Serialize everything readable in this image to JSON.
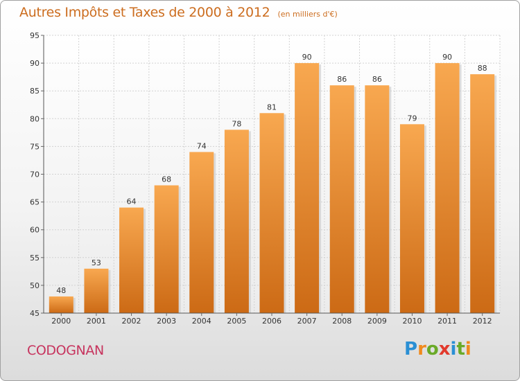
{
  "title": "Autres Impôts et Taxes de 2000 à 2012",
  "unit_label": "(en milliers d'€)",
  "commune": "CODOGNAN",
  "logo": {
    "text": "Proxiti",
    "letters": [
      "P",
      "r",
      "o",
      "x",
      "i",
      "t",
      "i"
    ],
    "letter_colors": [
      "#2a8fd4",
      "#f08a1e",
      "#6aaa28",
      "#e23a2d",
      "#2a8fd4",
      "#6aaa28",
      "#f08a1e"
    ]
  },
  "colors": {
    "bar_top": "#f8a850",
    "bar_bottom": "#cc6a15",
    "title": "#cc6d1f",
    "commune": "#c7345e"
  },
  "chart_data": {
    "type": "bar",
    "title": "Autres Impôts et Taxes de 2000 à 2012",
    "subtitle": "(en milliers d'€)",
    "categories": [
      "2000",
      "2001",
      "2002",
      "2003",
      "2004",
      "2005",
      "2006",
      "2007",
      "2008",
      "2009",
      "2010",
      "2011",
      "2012"
    ],
    "values": [
      48,
      53,
      64,
      68,
      74,
      78,
      81,
      90,
      86,
      86,
      79,
      90,
      88
    ],
    "ylim": [
      45,
      95
    ],
    "yticks": [
      45,
      50,
      55,
      60,
      65,
      70,
      75,
      80,
      85,
      90,
      95
    ],
    "grid": true,
    "xlabel": "",
    "ylabel": ""
  }
}
